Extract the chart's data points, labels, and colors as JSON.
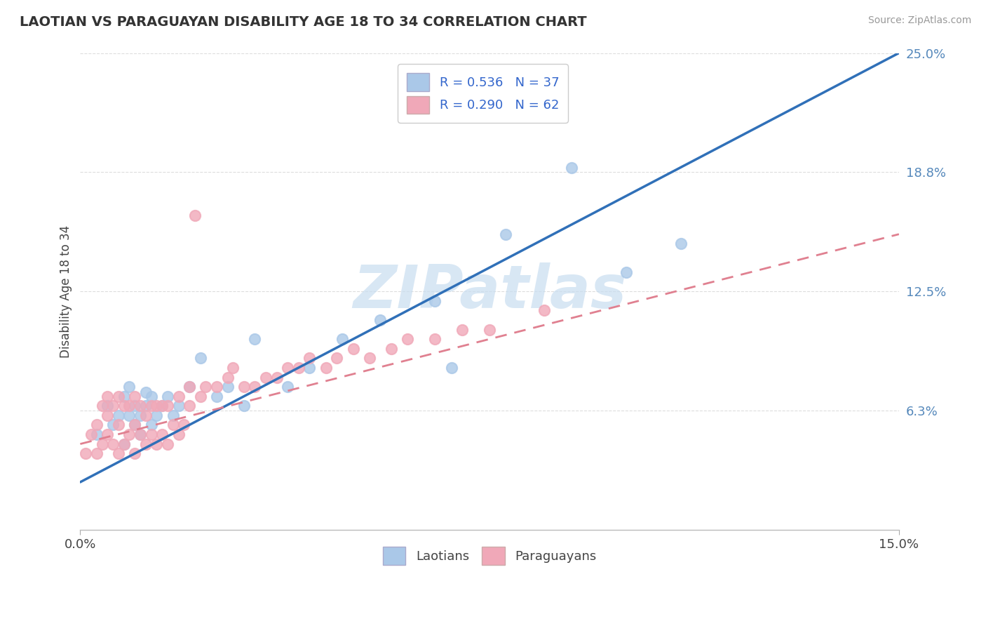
{
  "title": "LAOTIAN VS PARAGUAYAN DISABILITY AGE 18 TO 34 CORRELATION CHART",
  "source": "Source: ZipAtlas.com",
  "ylabel": "Disability Age 18 to 34",
  "xmin": 0.0,
  "xmax": 0.15,
  "ymin": 0.0,
  "ymax": 0.25,
  "yticks": [
    0.0,
    0.0625,
    0.125,
    0.1875,
    0.25
  ],
  "ytick_labels": [
    "",
    "6.3%",
    "12.5%",
    "18.8%",
    "25.0%"
  ],
  "xticks": [
    0.0,
    0.15
  ],
  "xtick_labels": [
    "0.0%",
    "15.0%"
  ],
  "R_blue": 0.536,
  "N_blue": 37,
  "R_pink": 0.29,
  "N_pink": 62,
  "blue_scatter_color": "#aac8e8",
  "pink_scatter_color": "#f0a8b8",
  "blue_line_color": "#3070b8",
  "pink_line_color": "#e08090",
  "watermark_color": "#c8ddf0",
  "grid_color": "#dddddd",
  "blue_scatter_x": [
    0.003,
    0.005,
    0.006,
    0.007,
    0.008,
    0.008,
    0.009,
    0.009,
    0.01,
    0.01,
    0.011,
    0.011,
    0.012,
    0.012,
    0.013,
    0.013,
    0.014,
    0.015,
    0.016,
    0.017,
    0.018,
    0.02,
    0.022,
    0.025,
    0.027,
    0.03,
    0.032,
    0.038,
    0.042,
    0.048,
    0.055,
    0.065,
    0.068,
    0.078,
    0.09,
    0.1,
    0.11
  ],
  "blue_scatter_y": [
    0.05,
    0.065,
    0.055,
    0.06,
    0.045,
    0.07,
    0.06,
    0.075,
    0.055,
    0.065,
    0.05,
    0.06,
    0.065,
    0.072,
    0.055,
    0.07,
    0.06,
    0.065,
    0.07,
    0.06,
    0.065,
    0.075,
    0.09,
    0.07,
    0.075,
    0.065,
    0.1,
    0.075,
    0.085,
    0.1,
    0.11,
    0.12,
    0.085,
    0.155,
    0.19,
    0.135,
    0.15
  ],
  "pink_scatter_x": [
    0.001,
    0.002,
    0.003,
    0.003,
    0.004,
    0.004,
    0.005,
    0.005,
    0.005,
    0.006,
    0.006,
    0.007,
    0.007,
    0.007,
    0.008,
    0.008,
    0.009,
    0.009,
    0.01,
    0.01,
    0.01,
    0.011,
    0.011,
    0.012,
    0.012,
    0.013,
    0.013,
    0.014,
    0.014,
    0.015,
    0.015,
    0.016,
    0.016,
    0.017,
    0.018,
    0.018,
    0.019,
    0.02,
    0.02,
    0.021,
    0.022,
    0.023,
    0.025,
    0.027,
    0.028,
    0.03,
    0.032,
    0.034,
    0.036,
    0.038,
    0.04,
    0.042,
    0.045,
    0.047,
    0.05,
    0.053,
    0.057,
    0.06,
    0.065,
    0.07,
    0.075,
    0.085
  ],
  "pink_scatter_y": [
    0.04,
    0.05,
    0.04,
    0.055,
    0.045,
    0.065,
    0.05,
    0.06,
    0.07,
    0.045,
    0.065,
    0.04,
    0.055,
    0.07,
    0.045,
    0.065,
    0.05,
    0.065,
    0.04,
    0.055,
    0.07,
    0.05,
    0.065,
    0.045,
    0.06,
    0.05,
    0.065,
    0.045,
    0.065,
    0.05,
    0.065,
    0.045,
    0.065,
    0.055,
    0.05,
    0.07,
    0.055,
    0.065,
    0.075,
    0.165,
    0.07,
    0.075,
    0.075,
    0.08,
    0.085,
    0.075,
    0.075,
    0.08,
    0.08,
    0.085,
    0.085,
    0.09,
    0.085,
    0.09,
    0.095,
    0.09,
    0.095,
    0.1,
    0.1,
    0.105,
    0.105,
    0.115
  ],
  "blue_trend_x0": 0.0,
  "blue_trend_y0": 0.025,
  "blue_trend_x1": 0.15,
  "blue_trend_y1": 0.25,
  "pink_trend_x0": 0.0,
  "pink_trend_y0": 0.045,
  "pink_trend_x1": 0.15,
  "pink_trend_y1": 0.155
}
